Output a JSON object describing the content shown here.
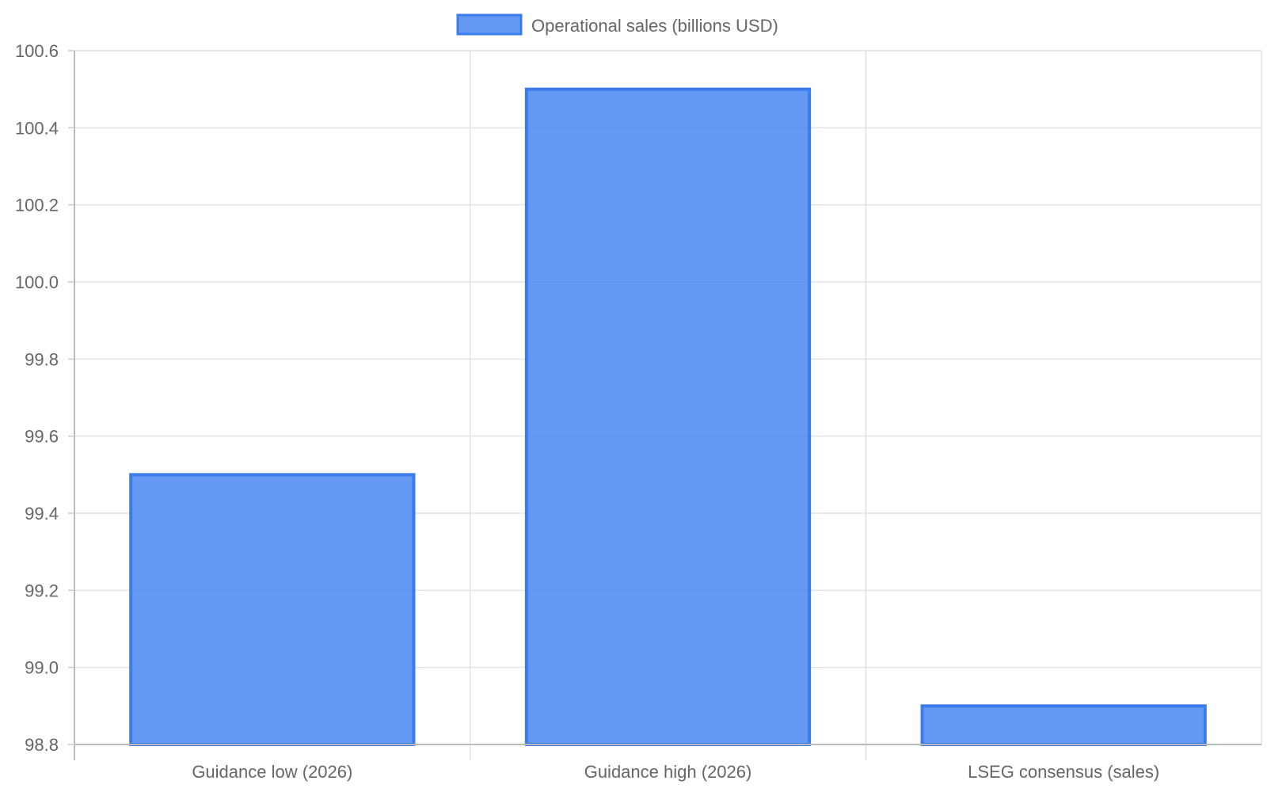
{
  "chart_data": {
    "type": "bar",
    "categories": [
      "Guidance low (2026)",
      "Guidance high (2026)",
      "LSEG consensus (sales)"
    ],
    "series": [
      {
        "name": "Operational sales (billions USD)",
        "values": [
          99.5,
          100.5,
          98.9
        ],
        "fill": "#4a86f0",
        "stroke": "#3b7ced"
      }
    ],
    "ylim": [
      98.8,
      100.6
    ],
    "yticks": [
      "100.6",
      "100.4",
      "100.2",
      "100.0",
      "99.8",
      "99.6",
      "99.4",
      "99.2",
      "99.0",
      "98.8"
    ],
    "grid": true,
    "legend": "top-center"
  }
}
